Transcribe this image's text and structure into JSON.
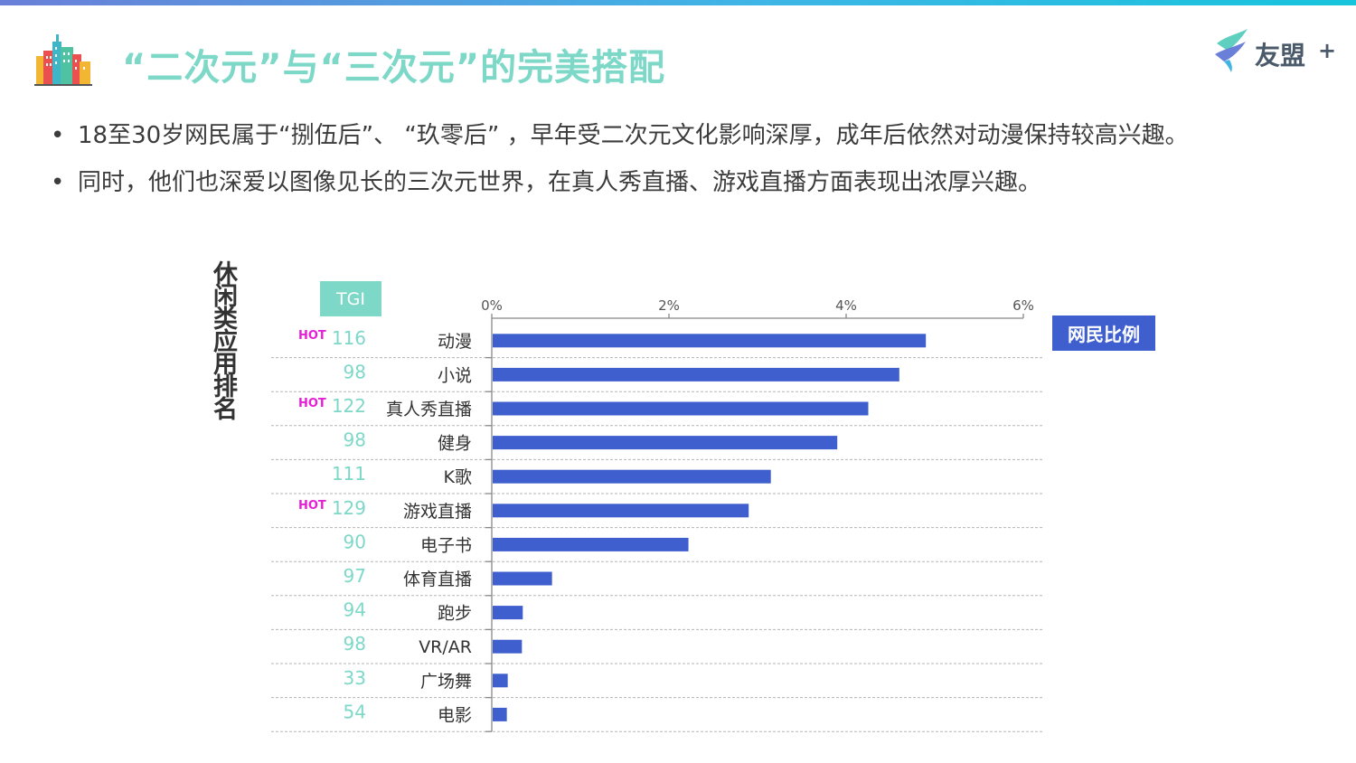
{
  "title": "“二次元”与“三次元”的完美搭配",
  "brand": {
    "name": "友盟",
    "plus": "+"
  },
  "bullets": [
    "18至30岁网民属于“捌伍后”、 “玖零后” ，早年受二次元文化影响深厚，成年后依然对动漫保持较高兴趣。",
    "同时，他们也深爱以图像见长的三次元世界，在真人秀直播、游戏直播方面表现出浓厚兴趣。"
  ],
  "chart_data": {
    "type": "bar",
    "orientation": "horizontal",
    "side_label": "休闲类应用排名",
    "tgi_header": "TGI",
    "legend": "网民比例",
    "hot_label": "HOT",
    "xlim": [
      0,
      6
    ],
    "x_ticks": [
      "0%",
      "2%",
      "4%",
      "6%"
    ],
    "categories": [
      "动漫",
      "小说",
      "真人秀直播",
      "健身",
      "K歌",
      "游戏直播",
      "电子书",
      "体育直播",
      "跑步",
      "VR/AR",
      "广场舞",
      "电影"
    ],
    "values": [
      4.9,
      4.6,
      4.25,
      3.9,
      3.15,
      2.9,
      2.22,
      0.68,
      0.35,
      0.34,
      0.18,
      0.17
    ],
    "tgi": [
      "116",
      "98",
      "122",
      "98",
      "111",
      "129",
      "90",
      "97",
      "94",
      "98",
      "33",
      "54"
    ],
    "hot": [
      true,
      false,
      true,
      false,
      false,
      true,
      false,
      false,
      false,
      false,
      false,
      false
    ],
    "colors": {
      "bar": "#3f5fcf",
      "tgi": "#7dd8c8",
      "hot": "#e61fd6"
    }
  }
}
